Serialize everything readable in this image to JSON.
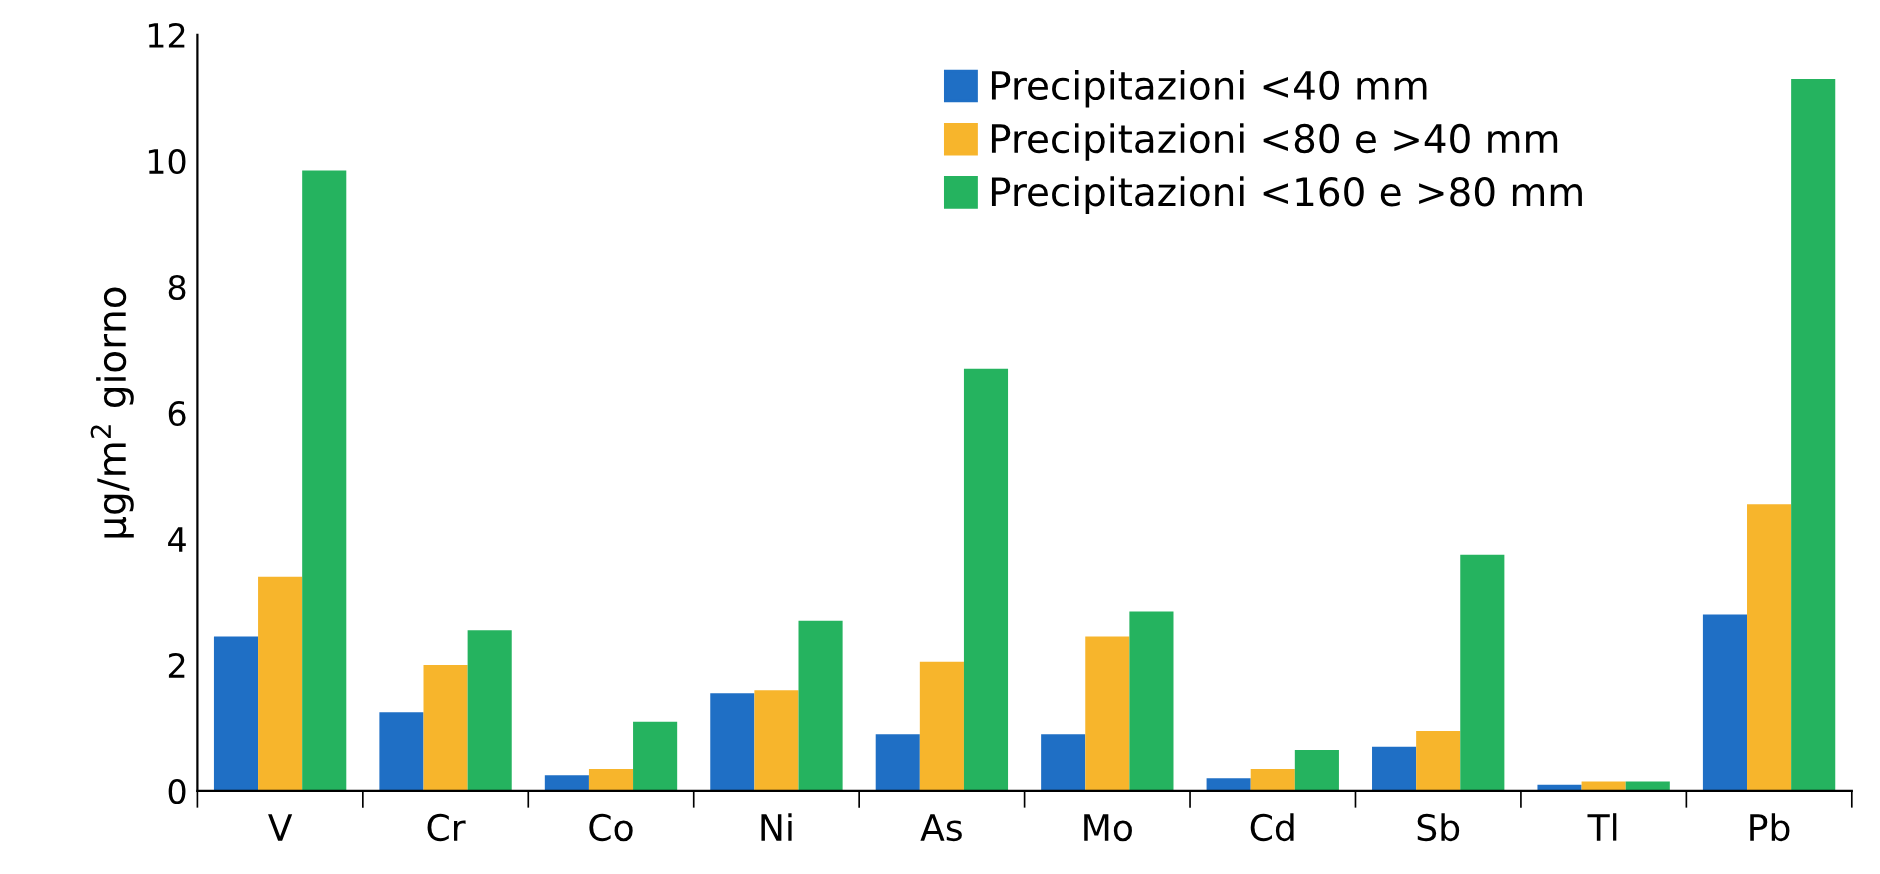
{
  "chart_data": {
    "type": "bar",
    "ylabel": "µg/m$^{2}$ giorno",
    "categories": [
      "V",
      "Cr",
      "Co",
      "Ni",
      "As",
      "Mo",
      "Cd",
      "Sb",
      "Tl",
      "Pb"
    ],
    "series": [
      {
        "name": "Precipitazioni <40 mm",
        "color": "#1f6fc5",
        "values": [
          2.45,
          1.25,
          0.25,
          1.55,
          0.9,
          0.9,
          0.2,
          0.7,
          0.1,
          2.8
        ]
      },
      {
        "name": "Precipitazioni <80 e >40 mm",
        "color": "#f7b52c",
        "values": [
          3.4,
          2.0,
          0.35,
          1.6,
          2.05,
          2.45,
          0.35,
          0.95,
          0.15,
          4.55
        ]
      },
      {
        "name": "Precipitazioni <160 e >80 mm",
        "color": "#25b35f",
        "values": [
          9.85,
          2.55,
          1.1,
          2.7,
          6.7,
          2.85,
          0.65,
          3.75,
          0.15,
          11.3
        ]
      }
    ],
    "ylim": [
      0,
      12
    ],
    "yticks": [
      0,
      2,
      4,
      6,
      8,
      10,
      12
    ],
    "grid": false,
    "legend": "top right"
  }
}
